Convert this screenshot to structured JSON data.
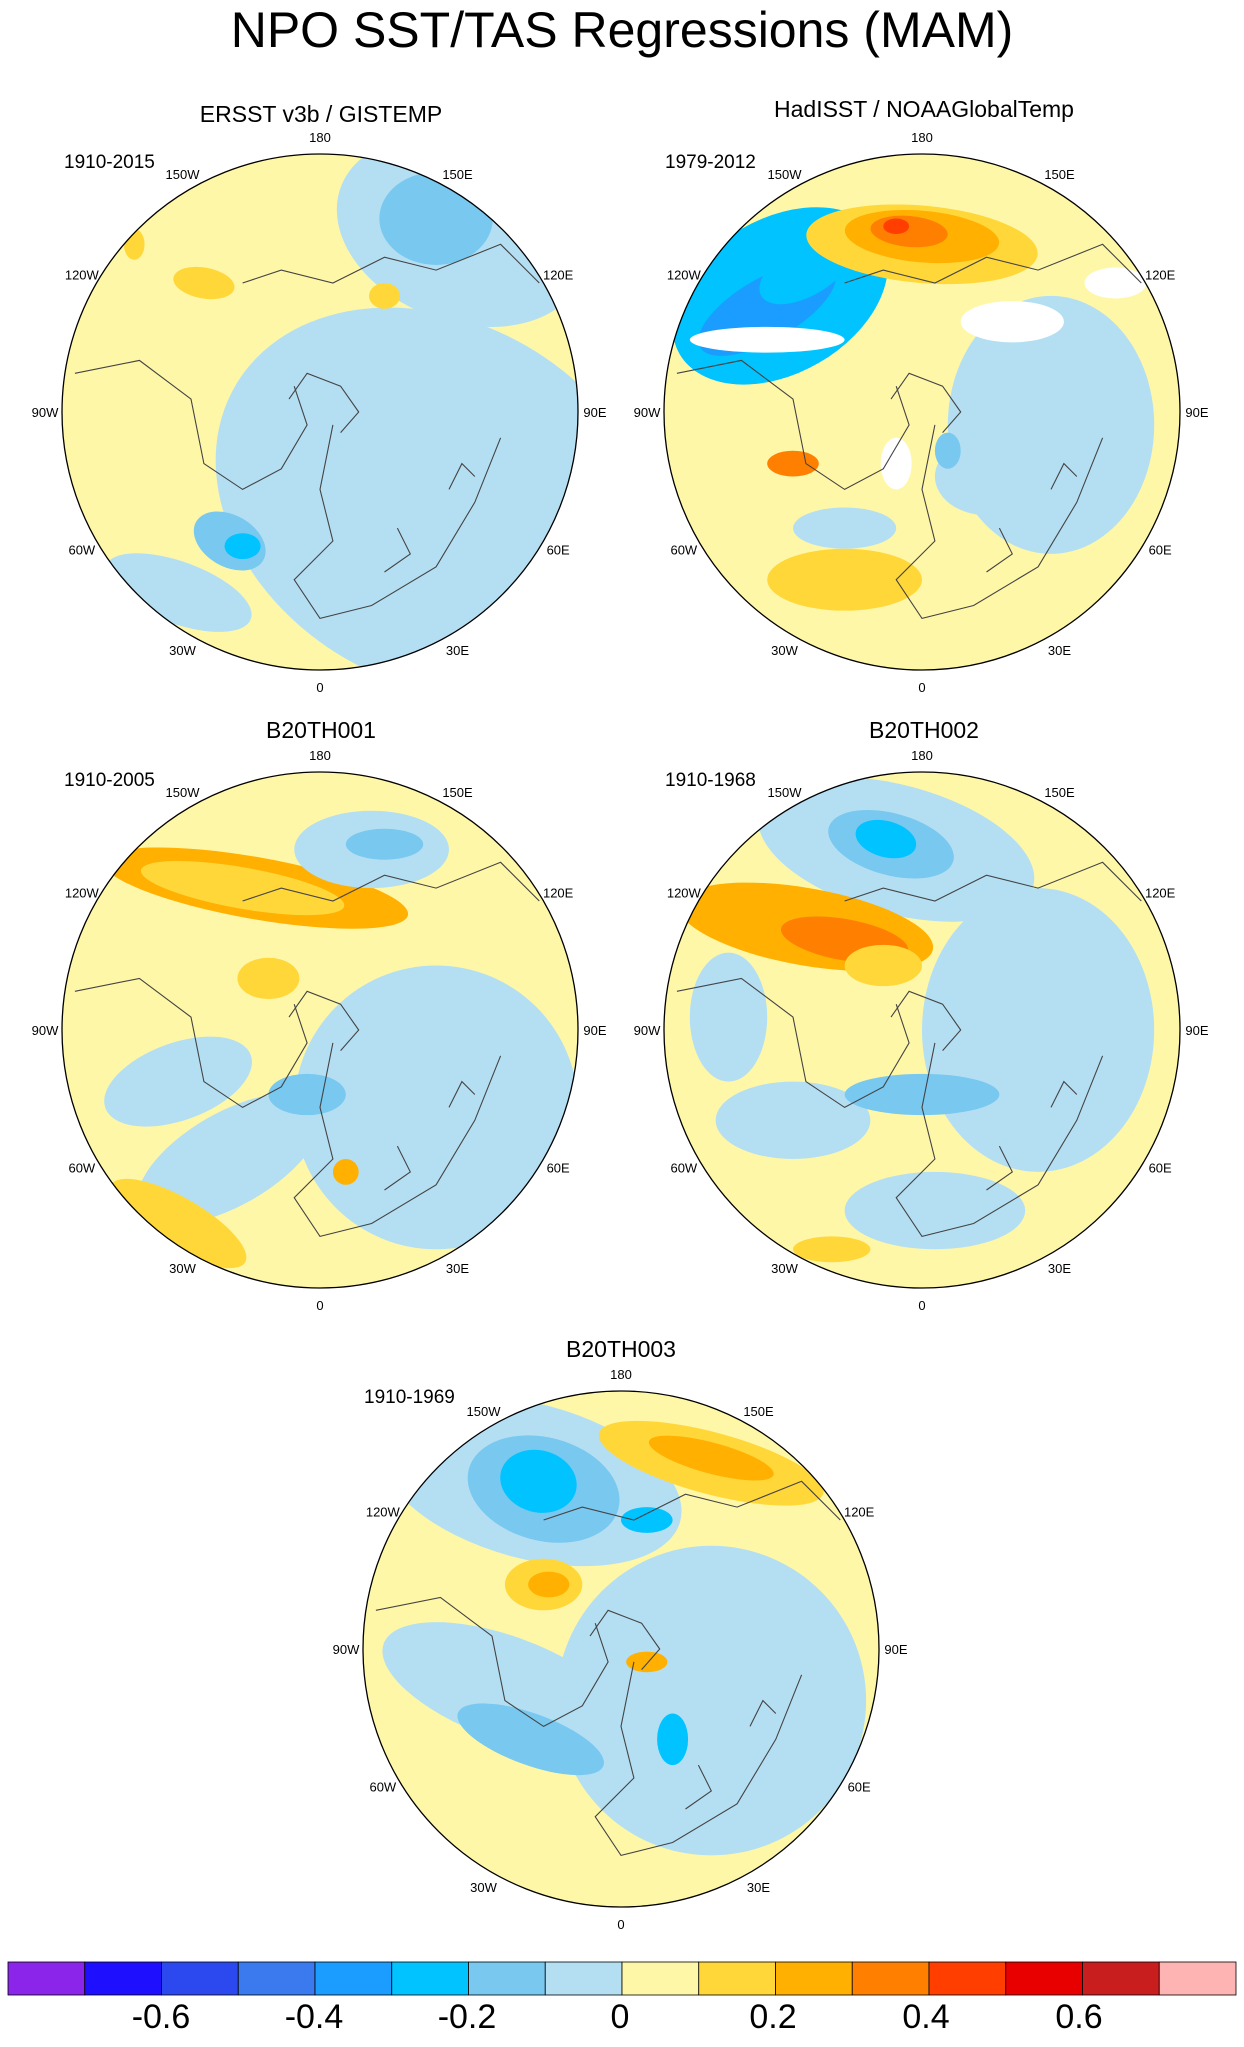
{
  "title": "NPO SST/TAS Regressions (MAM)",
  "lon_labels": [
    "180",
    "150E",
    "120E",
    "90E",
    "60E",
    "30E",
    "0",
    "30W",
    "60W",
    "90W",
    "120W",
    "150W"
  ],
  "colorbar": {
    "colors": [
      "#8c25ea",
      "#1f0fff",
      "#2b49ef",
      "#3a79ee",
      "#1b9cff",
      "#00c3ff",
      "#78c8f0",
      "#b4dff3",
      "#fff7a8",
      "#ffd738",
      "#ffb000",
      "#ff8000",
      "#ff3e00",
      "#e80000",
      "#c81e1e",
      "#ffb4b4"
    ],
    "tick_labels": [
      "-0.6",
      "-0.4",
      "-0.2",
      "0",
      "0.2",
      "0.4",
      "0.6"
    ]
  },
  "panels": [
    {
      "title": "ERSST v3b / GISTEMP",
      "period": "1910-2015"
    },
    {
      "title": "HadISST / NOAAGlobalTemp",
      "period": "1979-2012"
    },
    {
      "title": "B20TH001",
      "period": "1910-2005"
    },
    {
      "title": "B20TH002",
      "period": "1910-1968"
    },
    {
      "title": "B20TH003",
      "period": "1910-1969"
    }
  ]
}
